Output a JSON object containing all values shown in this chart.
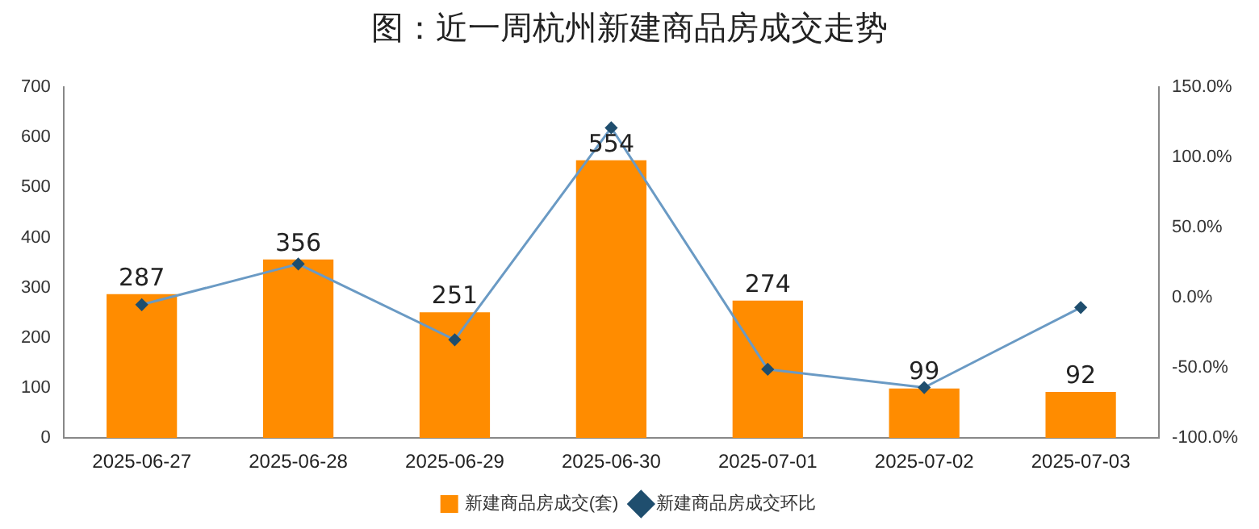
{
  "chart_data": {
    "type": "bar",
    "title": "图：近一周杭州新建商品房成交走势",
    "categories": [
      "2025-06-27",
      "2025-06-28",
      "2025-06-29",
      "2025-06-30",
      "2025-07-01",
      "2025-07-02",
      "2025-07-03"
    ],
    "series": [
      {
        "name": "新建商品房成交(套)",
        "color": "#ff8c00",
        "values": [
          287,
          356,
          251,
          554,
          274,
          99,
          92
        ],
        "value_labels": [
          "287",
          "356",
          "251",
          "554",
          "274",
          "99",
          "92"
        ]
      },
      {
        "name": "新建商品房成交环比",
        "type": "line",
        "axis": "y2",
        "color": "#6a9ac4",
        "values": [
          -5,
          24,
          -30,
          121,
          -51,
          -64,
          -7
        ]
      }
    ],
    "ylim": [
      0,
      700
    ],
    "yticks": [
      0,
      100,
      200,
      300,
      400,
      500,
      600,
      700
    ],
    "y2lim": [
      -100,
      150
    ],
    "y2ticks": [
      {
        "value": -100,
        "label": "-100.0%"
      },
      {
        "value": -50,
        "label": "-50.0%"
      },
      {
        "value": 0,
        "label": "0.0%"
      },
      {
        "value": 50,
        "label": "50.0%"
      },
      {
        "value": 100,
        "label": "100.0%"
      },
      {
        "value": 150,
        "label": "150.0%"
      }
    ],
    "grid": false,
    "legend": "bottom",
    "marker": "diamond",
    "line_style": "solid"
  }
}
